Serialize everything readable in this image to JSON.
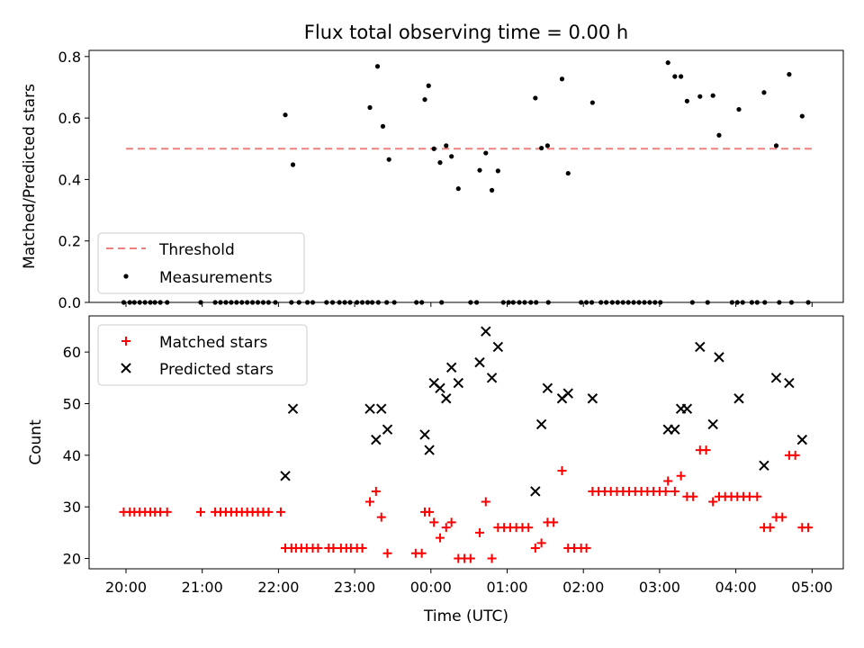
{
  "title": "Flux total observing time = 0.00 h",
  "xlabel": "Time (UTC)",
  "x_ticks": [
    "20:00",
    "21:00",
    "22:00",
    "23:00",
    "00:00",
    "01:00",
    "02:00",
    "03:00",
    "04:00",
    "05:00"
  ],
  "chart_data": [
    {
      "type": "scatter",
      "ylabel": "Matched/Predicted stars",
      "ylim": [
        0,
        0.82
      ],
      "yticks": [
        "0.0",
        "0.2",
        "0.4",
        "0.6",
        "0.8"
      ],
      "legend": {
        "position": "lower-left",
        "entries": [
          "Threshold",
          "Measurements"
        ]
      },
      "threshold": {
        "name": "Threshold",
        "value": 0.5,
        "x_start": 0.0,
        "x_end": 9.0,
        "color": "#f08080"
      },
      "zeros_x": [
        -0.03,
        0.05,
        0.11,
        0.18,
        0.25,
        0.32,
        0.38,
        0.45,
        0.54,
        0.98,
        1.17,
        1.24,
        1.31,
        1.38,
        1.45,
        1.52,
        1.59,
        1.66,
        1.73,
        1.8,
        1.87,
        1.96,
        2.17,
        2.27,
        2.38,
        2.45,
        2.63,
        2.71,
        2.8,
        2.87,
        2.94,
        3.03,
        3.1,
        3.17,
        3.23,
        3.31,
        3.42,
        3.52,
        3.81,
        3.88,
        4.14,
        4.52,
        4.6,
        4.95,
        5.02,
        5.08,
        5.16,
        5.23,
        5.31,
        5.38,
        5.54,
        5.97,
        6.04,
        6.11,
        6.23,
        6.3,
        6.38,
        6.45,
        6.52,
        6.59,
        6.66,
        6.73,
        6.8,
        6.87,
        6.94,
        7.01,
        7.43,
        7.63,
        7.95,
        8.02,
        8.09,
        8.21,
        8.28,
        8.38,
        8.57,
        8.73,
        8.95
      ],
      "series": [
        {
          "name": "Measurements",
          "color": "#000000",
          "points": [
            [
              2.09,
              0.61
            ],
            [
              2.19,
              0.448
            ],
            [
              3.2,
              0.634
            ],
            [
              3.3,
              0.768
            ],
            [
              3.37,
              0.573
            ],
            [
              3.45,
              0.465
            ],
            [
              3.92,
              0.66
            ],
            [
              3.97,
              0.705
            ],
            [
              4.04,
              0.5
            ],
            [
              4.12,
              0.455
            ],
            [
              4.2,
              0.51
            ],
            [
              4.27,
              0.475
            ],
            [
              4.36,
              0.37
            ],
            [
              4.64,
              0.43
            ],
            [
              4.72,
              0.486
            ],
            [
              4.8,
              0.365
            ],
            [
              4.88,
              0.428
            ],
            [
              5.37,
              0.665
            ],
            [
              5.45,
              0.502
            ],
            [
              5.53,
              0.51
            ],
            [
              5.72,
              0.727
            ],
            [
              5.8,
              0.42
            ],
            [
              6.12,
              0.65
            ],
            [
              7.11,
              0.78
            ],
            [
              7.2,
              0.735
            ],
            [
              7.28,
              0.735
            ],
            [
              7.36,
              0.655
            ],
            [
              7.53,
              0.67
            ],
            [
              7.7,
              0.673
            ],
            [
              7.78,
              0.544
            ],
            [
              8.04,
              0.628
            ],
            [
              8.37,
              0.683
            ],
            [
              8.53,
              0.51
            ],
            [
              8.7,
              0.742
            ],
            [
              8.87,
              0.606
            ]
          ]
        }
      ]
    },
    {
      "type": "scatter",
      "ylabel": "Count",
      "ylim": [
        18,
        67
      ],
      "yticks": [
        "20",
        "30",
        "40",
        "50",
        "60"
      ],
      "legend": {
        "position": "top-left",
        "entries": [
          "Matched stars",
          "Predicted stars"
        ]
      },
      "series": [
        {
          "name": "Matched stars",
          "color": "#ff0000",
          "points": [
            [
              -0.03,
              29
            ],
            [
              0.05,
              29
            ],
            [
              0.11,
              29
            ],
            [
              0.18,
              29
            ],
            [
              0.25,
              29
            ],
            [
              0.32,
              29
            ],
            [
              0.38,
              29
            ],
            [
              0.45,
              29
            ],
            [
              0.54,
              29
            ],
            [
              0.98,
              29
            ],
            [
              1.17,
              29
            ],
            [
              1.24,
              29
            ],
            [
              1.31,
              29
            ],
            [
              1.38,
              29
            ],
            [
              1.45,
              29
            ],
            [
              1.52,
              29
            ],
            [
              1.59,
              29
            ],
            [
              1.66,
              29
            ],
            [
              1.73,
              29
            ],
            [
              1.8,
              29
            ],
            [
              1.87,
              29
            ],
            [
              2.03,
              29
            ],
            [
              2.09,
              22
            ],
            [
              2.17,
              22
            ],
            [
              2.23,
              22
            ],
            [
              2.3,
              22
            ],
            [
              2.37,
              22
            ],
            [
              2.45,
              22
            ],
            [
              2.52,
              22
            ],
            [
              2.66,
              22
            ],
            [
              2.72,
              22
            ],
            [
              2.82,
              22
            ],
            [
              2.89,
              22
            ],
            [
              2.95,
              22
            ],
            [
              3.03,
              22
            ],
            [
              3.1,
              22
            ],
            [
              3.2,
              31
            ],
            [
              3.28,
              33
            ],
            [
              3.35,
              28
            ],
            [
              3.43,
              21
            ],
            [
              3.8,
              21
            ],
            [
              3.88,
              21
            ],
            [
              3.92,
              29
            ],
            [
              3.98,
              29
            ],
            [
              4.04,
              27
            ],
            [
              4.12,
              24
            ],
            [
              4.2,
              26
            ],
            [
              4.27,
              27
            ],
            [
              4.36,
              20
            ],
            [
              4.44,
              20
            ],
            [
              4.52,
              20
            ],
            [
              4.64,
              25
            ],
            [
              4.72,
              31
            ],
            [
              4.8,
              20
            ],
            [
              4.88,
              26
            ],
            [
              4.96,
              26
            ],
            [
              5.04,
              26
            ],
            [
              5.12,
              26
            ],
            [
              5.2,
              26
            ],
            [
              5.28,
              26
            ],
            [
              5.37,
              22
            ],
            [
              5.45,
              23
            ],
            [
              5.53,
              27
            ],
            [
              5.61,
              27
            ],
            [
              5.72,
              37
            ],
            [
              5.8,
              22
            ],
            [
              5.88,
              22
            ],
            [
              5.97,
              22
            ],
            [
              6.04,
              22
            ],
            [
              6.12,
              33
            ],
            [
              6.2,
              33
            ],
            [
              6.28,
              33
            ],
            [
              6.36,
              33
            ],
            [
              6.44,
              33
            ],
            [
              6.52,
              33
            ],
            [
              6.6,
              33
            ],
            [
              6.68,
              33
            ],
            [
              6.76,
              33
            ],
            [
              6.84,
              33
            ],
            [
              6.92,
              33
            ],
            [
              7.0,
              33
            ],
            [
              7.08,
              33
            ],
            [
              7.11,
              35
            ],
            [
              7.2,
              33
            ],
            [
              7.28,
              36
            ],
            [
              7.36,
              32
            ],
            [
              7.44,
              32
            ],
            [
              7.53,
              41
            ],
            [
              7.61,
              41
            ],
            [
              7.7,
              31
            ],
            [
              7.78,
              32
            ],
            [
              7.86,
              32
            ],
            [
              7.94,
              32
            ],
            [
              8.02,
              32
            ],
            [
              8.1,
              32
            ],
            [
              8.18,
              32
            ],
            [
              8.28,
              32
            ],
            [
              8.37,
              26
            ],
            [
              8.45,
              26
            ],
            [
              8.53,
              28
            ],
            [
              8.61,
              28
            ],
            [
              8.7,
              40
            ],
            [
              8.78,
              40
            ],
            [
              8.87,
              26
            ],
            [
              8.95,
              26
            ]
          ]
        },
        {
          "name": "Predicted stars",
          "color": "#000000",
          "points": [
            [
              2.09,
              36
            ],
            [
              2.19,
              49
            ],
            [
              3.2,
              49
            ],
            [
              3.28,
              43
            ],
            [
              3.35,
              49
            ],
            [
              3.43,
              45
            ],
            [
              3.92,
              44
            ],
            [
              3.98,
              41
            ],
            [
              4.04,
              54
            ],
            [
              4.12,
              53
            ],
            [
              4.2,
              51
            ],
            [
              4.27,
              57
            ],
            [
              4.36,
              54
            ],
            [
              4.64,
              58
            ],
            [
              4.72,
              64
            ],
            [
              4.8,
              55
            ],
            [
              4.88,
              61
            ],
            [
              5.37,
              33
            ],
            [
              5.45,
              46
            ],
            [
              5.53,
              53
            ],
            [
              5.72,
              51
            ],
            [
              5.8,
              52
            ],
            [
              6.12,
              51
            ],
            [
              7.11,
              45
            ],
            [
              7.2,
              45
            ],
            [
              7.28,
              49
            ],
            [
              7.36,
              49
            ],
            [
              7.53,
              61
            ],
            [
              7.7,
              46
            ],
            [
              7.78,
              59
            ],
            [
              8.04,
              51
            ],
            [
              8.37,
              38
            ],
            [
              8.53,
              55
            ],
            [
              8.7,
              54
            ],
            [
              8.87,
              43
            ]
          ]
        }
      ]
    }
  ]
}
